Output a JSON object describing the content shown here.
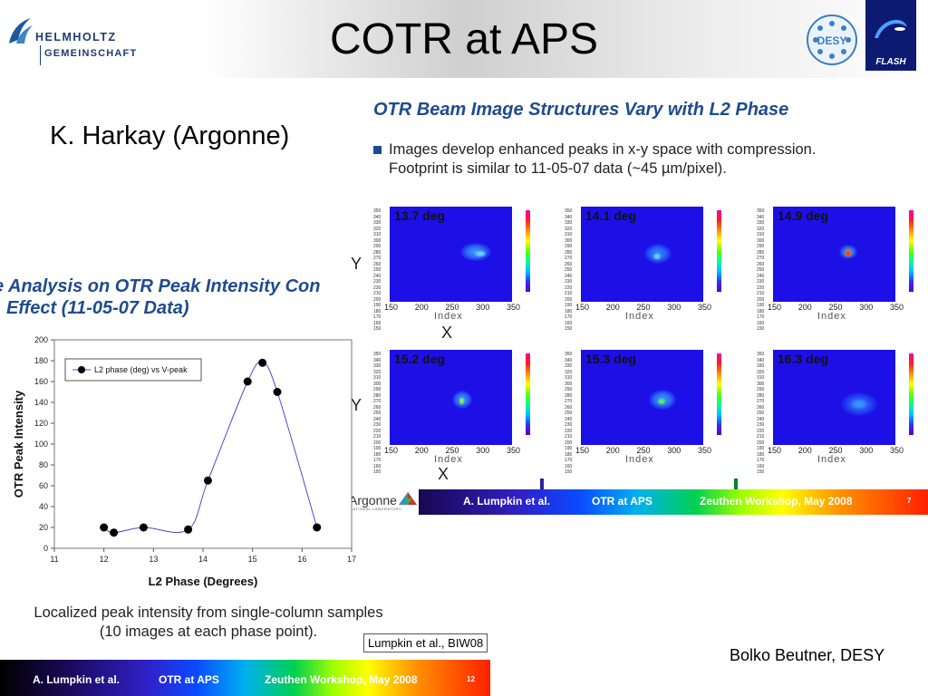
{
  "slide": {
    "title": "COTR at APS",
    "presenter": "K. Harkay (Argonne)",
    "author": "Bolko Beutner, DESY"
  },
  "logos": {
    "helmholtz_line1": "HELMHOLTZ",
    "helmholtz_line2": "GEMEINSCHAFT",
    "desy": "DESY",
    "flash": "FLASH",
    "argonne": "Argonne",
    "argonne_sub": "NATIONAL LABORATORY"
  },
  "right_section": {
    "title": "OTR Beam Image Structures Vary with L2 Phase",
    "bullet_line1": "Images develop enhanced peaks in x-y space with compression.",
    "bullet_line2": "Footprint is similar to 11-05-07 data (~45 µm/pixel).",
    "y_axis_letter": "Y",
    "x_axis_letter": "X",
    "x_axis_title": "Index",
    "x_ticks": [
      "150",
      "200",
      "250",
      "300",
      "350"
    ],
    "y_ticks": "350\n340\n330\n320\n310\n300\n290\n280\n270\n260\n250\n240\n230\n220\n210\n200\n190\n180\n170\n160\n150",
    "panels": [
      {
        "label": "13.7 deg"
      },
      {
        "label": "14.1 deg"
      },
      {
        "label": "14.9 deg"
      },
      {
        "label": "15.2 deg"
      },
      {
        "label": "15.3 deg"
      },
      {
        "label": "16.3 deg"
      }
    ],
    "footer": {
      "author": "A. Lumpkin et al.",
      "title": "OTR at APS",
      "event": "Zeuthen Workshop, May 2008",
      "page": "7"
    }
  },
  "left_section": {
    "title_line1": "e Analysis on OTR Peak Intensity Con",
    "title_line2": "Effect (11-05-07 Data)",
    "caption_line1": "Localized peak intensity from single-column samples",
    "caption_line2": "(10 images at each phase point).",
    "reference": "Lumpkin et al., BIW08",
    "footer": {
      "author": "A. Lumpkin et al.",
      "title": "OTR at APS",
      "event": "Zeuthen Workshop, May 2008",
      "page": "12"
    }
  },
  "chart_data": {
    "type": "line",
    "xlabel": "L2 Phase (Degrees)",
    "ylabel": "OTR Peak Intensity",
    "xlim": [
      11,
      17
    ],
    "ylim": [
      0,
      200
    ],
    "x_ticks": [
      11,
      12,
      13,
      14,
      15,
      16,
      17
    ],
    "y_ticks": [
      0,
      20,
      40,
      60,
      80,
      100,
      120,
      140,
      160,
      180,
      200
    ],
    "grid": false,
    "legend_position": "top-left",
    "line_color": "#4a4ad0",
    "series": [
      {
        "name": "L2 phase (deg) vs V-peak",
        "x": [
          12.0,
          12.2,
          12.8,
          13.7,
          14.1,
          14.9,
          15.2,
          15.5,
          16.3
        ],
        "y": [
          20,
          15,
          20,
          18,
          65,
          160,
          178,
          150,
          20
        ]
      }
    ]
  }
}
